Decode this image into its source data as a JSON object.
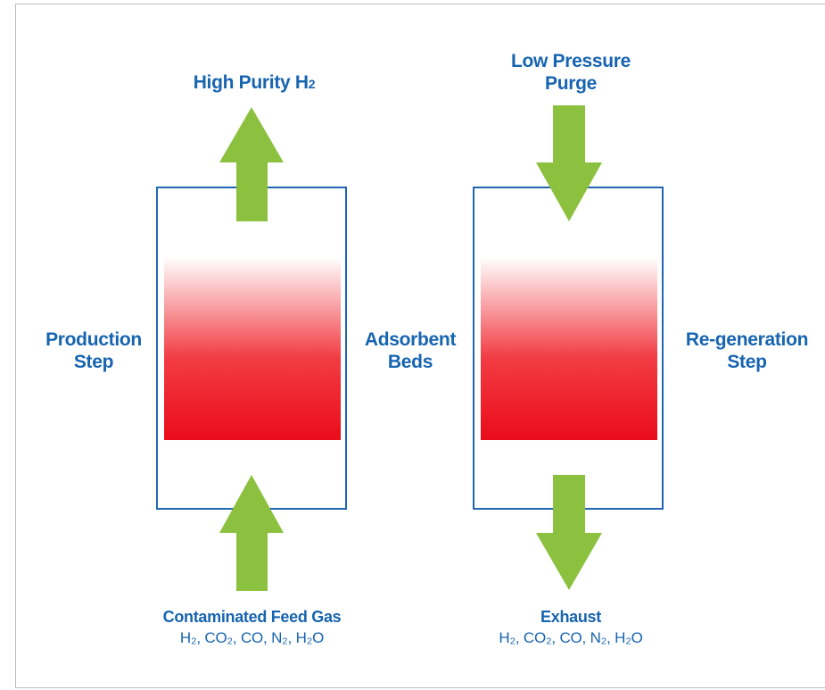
{
  "diagram": {
    "top_left_label": [
      "High Purity H",
      "2"
    ],
    "top_right_label": [
      "Low Pressure",
      "Purge"
    ],
    "left_label": [
      "Production",
      "Step"
    ],
    "center_label": [
      "Adsorbent",
      "Beds"
    ],
    "right_label": [
      "Re-generation",
      "Step"
    ],
    "bottom_left_title": "Contaminated Feed Gas",
    "bottom_left_sub": "H₂, CO₂, CO, N₂, H₂O",
    "bottom_right_title": "Exhaust",
    "bottom_right_sub": "H₂, CO₂, CO, N₂, H₂O",
    "colors": {
      "text_blue": "#1764b0",
      "bed_outline": "#2066b0",
      "arrow_green": "#8cc13f",
      "adsorbent_red": "#ee1c24"
    }
  }
}
